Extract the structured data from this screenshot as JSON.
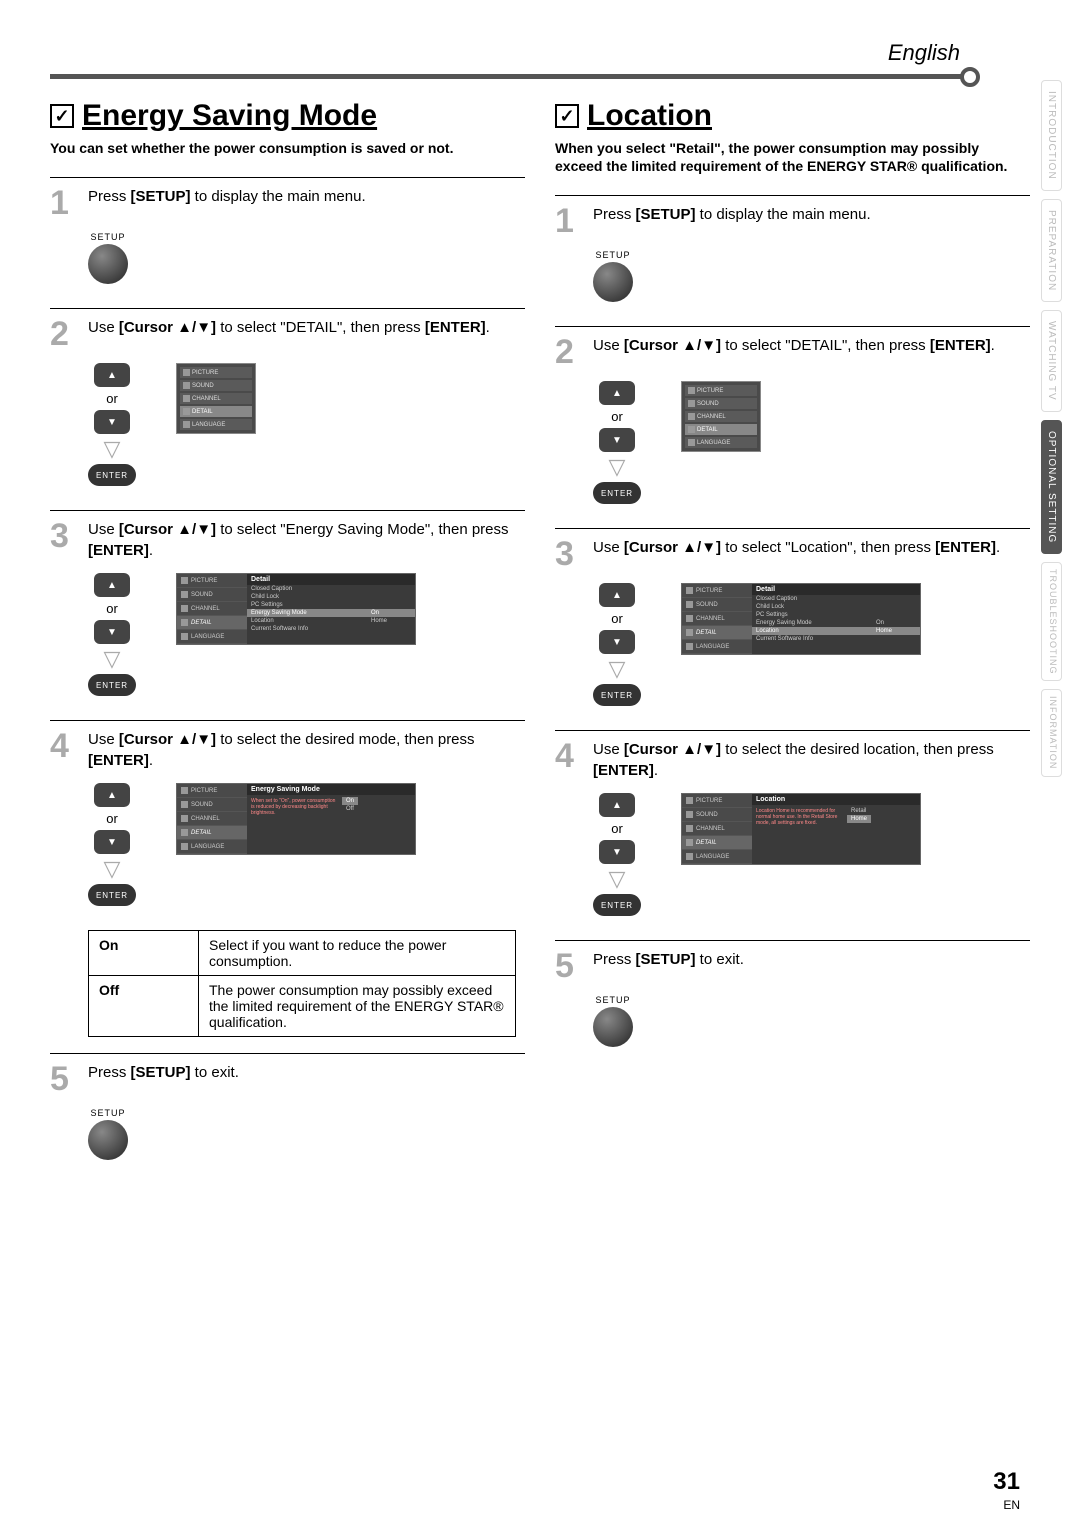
{
  "header": {
    "lang": "English"
  },
  "page": {
    "number": "31",
    "en": "EN"
  },
  "side_tabs": [
    "INTRODUCTION",
    "PREPARATION",
    "WATCHING TV",
    "OPTIONAL SETTING",
    "TROUBLESHOOTING",
    "INFORMATION"
  ],
  "left": {
    "title": "Energy Saving Mode",
    "intro": "You can set whether the power consumption is saved or not.",
    "steps": [
      {
        "num": "1",
        "text_pre": "Press ",
        "b1": "[SETUP]",
        "text_post": " to display the main menu."
      },
      {
        "num": "2",
        "text_pre": "Use ",
        "b1": "[Cursor ▲/▼]",
        "text_mid": " to select \"DETAIL\", then press ",
        "b2": "[ENTER]",
        "text_post": "."
      },
      {
        "num": "3",
        "text_pre": "Use ",
        "b1": "[Cursor ▲/▼]",
        "text_mid": " to select \"Energy Saving Mode\", then press ",
        "b2": "[ENTER]",
        "text_post": "."
      },
      {
        "num": "4",
        "text_pre": "Use ",
        "b1": "[Cursor ▲/▼]",
        "text_mid": " to select the desired mode, then press ",
        "b2": "[ENTER]",
        "text_post": "."
      },
      {
        "num": "5",
        "text_pre": "Press ",
        "b1": "[SETUP]",
        "text_post": " to exit."
      }
    ],
    "table": {
      "r1_label": "On",
      "r1_text": "Select if you want to reduce the power consumption.",
      "r2_label": "Off",
      "r2_text": "The power consumption may possibly exceed the limited requirement of the ENERGY STAR® qualification."
    }
  },
  "right": {
    "title": "Location",
    "intro": "When you select \"Retail\", the power consumption may possibly exceed the limited requirement of the ENERGY STAR® qualification.",
    "steps": [
      {
        "num": "1",
        "text_pre": "Press ",
        "b1": "[SETUP]",
        "text_post": " to display the main menu."
      },
      {
        "num": "2",
        "text_pre": "Use ",
        "b1": "[Cursor ▲/▼]",
        "text_mid": " to select \"DETAIL\", then press ",
        "b2": "[ENTER]",
        "text_post": "."
      },
      {
        "num": "3",
        "text_pre": "Use ",
        "b1": "[Cursor ▲/▼]",
        "text_mid": " to select \"Location\", then press ",
        "b2": "[ENTER]",
        "text_post": "."
      },
      {
        "num": "4",
        "text_pre": "Use ",
        "b1": "[Cursor ▲/▼]",
        "text_mid": " to select the desired location, then press ",
        "b2": "[ENTER]",
        "text_post": "."
      },
      {
        "num": "5",
        "text_pre": "Press ",
        "b1": "[SETUP]",
        "text_post": " to exit."
      }
    ]
  },
  "labels": {
    "setup": "SETUP",
    "enter": "ENTER",
    "or": "or"
  },
  "menu": {
    "items": [
      "PICTURE",
      "SOUND",
      "CHANNEL",
      "DETAIL",
      "LANGUAGE"
    ],
    "detail_hdr": "Detail",
    "detail_items": [
      "Closed Caption",
      "Child Lock",
      "PC Settings",
      "Energy Saving Mode",
      "Location",
      "Current Software Info"
    ],
    "esm_val": "On",
    "loc_val": "Home",
    "esm_hdr": "Energy Saving Mode",
    "esm_msg": "When set to \"On\", power consumption is reduced by decreasing backlight brightness.",
    "esm_opts": [
      "On",
      "Off"
    ],
    "loc_hdr": "Location",
    "loc_msg": "Location Home is recommended for normal home use. In the Retail Store mode, all settings are fixed.",
    "loc_opts": [
      "Retail",
      "Home"
    ]
  }
}
